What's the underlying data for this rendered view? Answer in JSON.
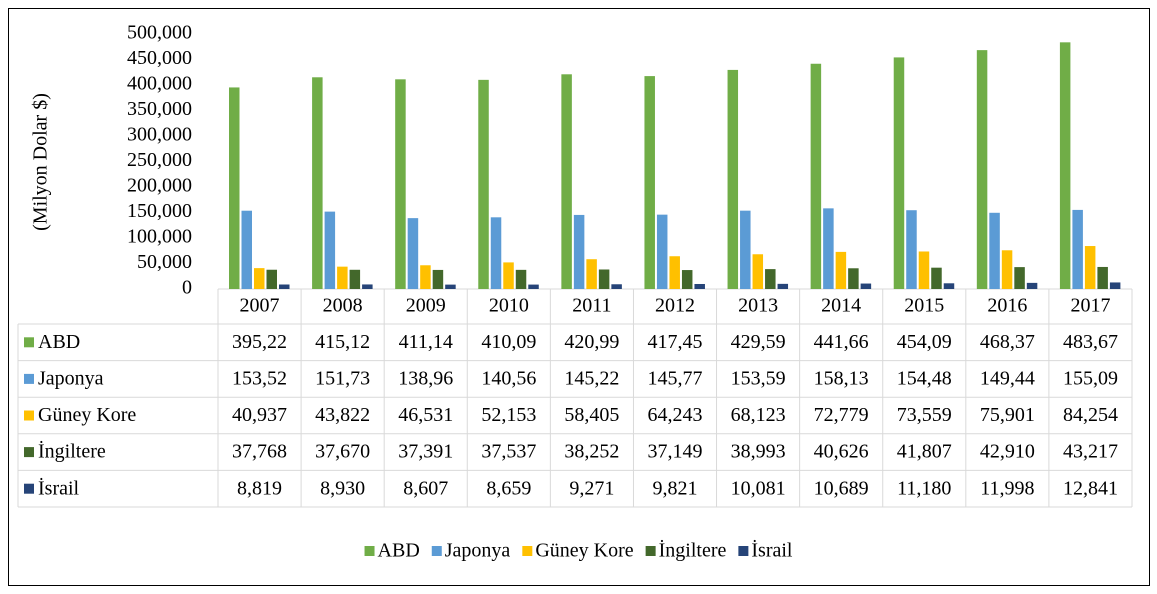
{
  "chart_data": {
    "type": "bar",
    "y_label": "(Milyon Dolar $)",
    "categories": [
      "2007",
      "2008",
      "2009",
      "2010",
      "2011",
      "2012",
      "2013",
      "2014",
      "2015",
      "2016",
      "2017"
    ],
    "series": [
      {
        "name": "ABD",
        "color": "#70ad47",
        "values": [
          395220,
          415120,
          411140,
          410090,
          420990,
          417450,
          429590,
          441660,
          454090,
          468370,
          483670
        ],
        "value_labels": [
          "395,22",
          "415,12",
          "411,14",
          "410,09",
          "420,99",
          "417,45",
          "429,59",
          "441,66",
          "454,09",
          "468,37",
          "483,67"
        ]
      },
      {
        "name": "Japonya",
        "color": "#5b9bd5",
        "values": [
          153520,
          151730,
          138960,
          140560,
          145220,
          145770,
          153590,
          158130,
          154480,
          149440,
          155090
        ],
        "value_labels": [
          "153,52",
          "151,73",
          "138,96",
          "140,56",
          "145,22",
          "145,77",
          "153,59",
          "158,13",
          "154,48",
          "149,44",
          "155,09"
        ]
      },
      {
        "name": "Güney Kore",
        "color": "#ffc000",
        "values": [
          40937,
          43822,
          46531,
          52153,
          58405,
          64243,
          68123,
          72779,
          73559,
          75901,
          84254
        ],
        "value_labels": [
          "40,937",
          "43,822",
          "46,531",
          "52,153",
          "58,405",
          "64,243",
          "68,123",
          "72,779",
          "73,559",
          "75,901",
          "84,254"
        ]
      },
      {
        "name": "İngiltere",
        "color": "#43682b",
        "values": [
          37768,
          37670,
          37391,
          37537,
          38252,
          37149,
          38993,
          40626,
          41807,
          42910,
          43217
        ],
        "value_labels": [
          "37,768",
          "37,670",
          "37,391",
          "37,537",
          "38,252",
          "37,149",
          "38,993",
          "40,626",
          "41,807",
          "42,910",
          "43,217"
        ]
      },
      {
        "name": "İsrail",
        "color": "#264478",
        "values": [
          8819,
          8930,
          8607,
          8659,
          9271,
          9821,
          10081,
          10689,
          11180,
          11998,
          12841
        ],
        "value_labels": [
          "8,819",
          "8,930",
          "8,607",
          "8,659",
          "9,271",
          "9,821",
          "10,081",
          "10,689",
          "11,180",
          "11,998",
          "12,841"
        ]
      }
    ],
    "ylim": [
      0,
      500000
    ],
    "yticks": [
      0,
      {
        "value": 50000,
        "label": "50,000"
      },
      {
        "value": 100000,
        "label": "100,000"
      },
      {
        "value": 150000,
        "label": "150,000"
      },
      {
        "value": 200000,
        "label": "200,000"
      },
      {
        "value": 250000,
        "label": "250,000"
      },
      {
        "value": 300000,
        "label": "300,000"
      },
      {
        "value": 350000,
        "label": "350,000"
      },
      {
        "value": 400000,
        "label": "400,000"
      },
      {
        "value": 450000,
        "label": "450,000"
      },
      {
        "value": 500000,
        "label": "500,000"
      }
    ],
    "legend": "bottom"
  }
}
